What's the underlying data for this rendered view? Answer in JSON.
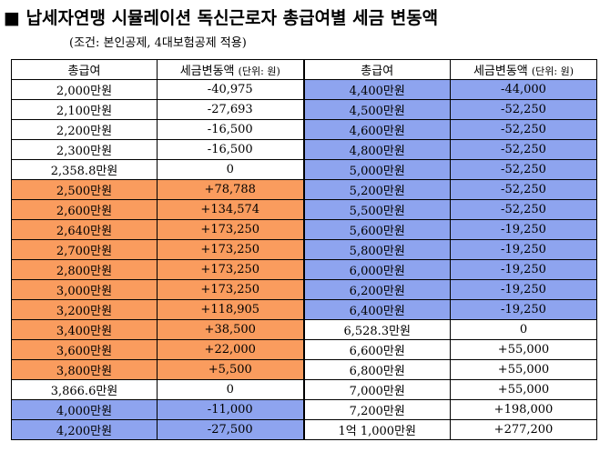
{
  "title": "■ 납세자연맹 시뮬레이션 독신근로자 총급여별 세금 변동액",
  "subtitle": "(조건: 본인공제, 4대보험공제 적용)",
  "colors": {
    "white": "#ffffff",
    "orange": "#fa9c5e",
    "blue": "#8ea4ef"
  },
  "table": {
    "headers": {
      "salary": "총급여",
      "change_main": "세금변동액",
      "change_unit": "(단위: 원)"
    },
    "rows": [
      {
        "left": {
          "salary": "2,000만원",
          "change": "-40,975",
          "color": "white"
        },
        "right": {
          "salary": "4,400만원",
          "change": "-44,000",
          "color": "blue"
        }
      },
      {
        "left": {
          "salary": "2,100만원",
          "change": "-27,693",
          "color": "white"
        },
        "right": {
          "salary": "4,500만원",
          "change": "-52,250",
          "color": "blue"
        }
      },
      {
        "left": {
          "salary": "2,200만원",
          "change": "-16,500",
          "color": "white"
        },
        "right": {
          "salary": "4,600만원",
          "change": "-52,250",
          "color": "blue"
        }
      },
      {
        "left": {
          "salary": "2,300만원",
          "change": "-16,500",
          "color": "white"
        },
        "right": {
          "salary": "4,800만원",
          "change": "-52,250",
          "color": "blue"
        }
      },
      {
        "left": {
          "salary": "2,358.8만원",
          "change": "0",
          "color": "white"
        },
        "right": {
          "salary": "5,000만원",
          "change": "-52,250",
          "color": "blue"
        }
      },
      {
        "left": {
          "salary": "2,500만원",
          "change": "+78,788",
          "color": "orange"
        },
        "right": {
          "salary": "5,200만원",
          "change": "-52,250",
          "color": "blue"
        }
      },
      {
        "left": {
          "salary": "2,600만원",
          "change": "+134,574",
          "color": "orange"
        },
        "right": {
          "salary": "5,500만원",
          "change": "-52,250",
          "color": "blue"
        }
      },
      {
        "left": {
          "salary": "2,640만원",
          "change": "+173,250",
          "color": "orange"
        },
        "right": {
          "salary": "5,600만원",
          "change": "-19,250",
          "color": "blue"
        }
      },
      {
        "left": {
          "salary": "2,700만원",
          "change": "+173,250",
          "color": "orange"
        },
        "right": {
          "salary": "5,800만원",
          "change": "-19,250",
          "color": "blue"
        }
      },
      {
        "left": {
          "salary": "2,800만원",
          "change": "+173,250",
          "color": "orange"
        },
        "right": {
          "salary": "6,000만원",
          "change": "-19,250",
          "color": "blue"
        }
      },
      {
        "left": {
          "salary": "3,000만원",
          "change": "+173,250",
          "color": "orange"
        },
        "right": {
          "salary": "6,200만원",
          "change": "-19,250",
          "color": "blue"
        }
      },
      {
        "left": {
          "salary": "3,200만원",
          "change": "+118,905",
          "color": "orange"
        },
        "right": {
          "salary": "6,400만원",
          "change": "-19,250",
          "color": "blue"
        }
      },
      {
        "left": {
          "salary": "3,400만원",
          "change": "+38,500",
          "color": "orange"
        },
        "right": {
          "salary": "6,528.3만원",
          "change": "0",
          "color": "white"
        }
      },
      {
        "left": {
          "salary": "3,600만원",
          "change": "+22,000",
          "color": "orange"
        },
        "right": {
          "salary": "6,600만원",
          "change": "+55,000",
          "color": "white"
        }
      },
      {
        "left": {
          "salary": "3,800만원",
          "change": "+5,500",
          "color": "orange"
        },
        "right": {
          "salary": "6,800만원",
          "change": "+55,000",
          "color": "white"
        }
      },
      {
        "left": {
          "salary": "3,866.6만원",
          "change": "0",
          "color": "white"
        },
        "right": {
          "salary": "7,000만원",
          "change": "+55,000",
          "color": "white"
        }
      },
      {
        "left": {
          "salary": "4,000만원",
          "change": "-11,000",
          "color": "blue"
        },
        "right": {
          "salary": "7,200만원",
          "change": "+198,000",
          "color": "white"
        }
      },
      {
        "left": {
          "salary": "4,200만원",
          "change": "-27,500",
          "color": "blue"
        },
        "right": {
          "salary": "1억 1,000만원",
          "change": "+277,200",
          "color": "white"
        }
      }
    ]
  }
}
